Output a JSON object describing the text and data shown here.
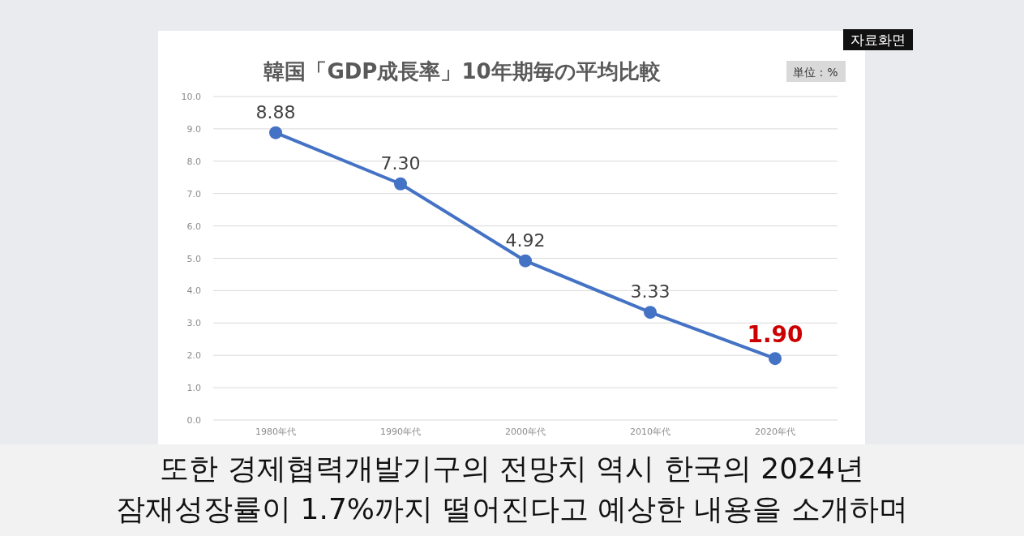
{
  "chart_data": {
    "type": "line",
    "title": "韓国「GDP成長率」10年期毎の平均比較",
    "categories": [
      "1980年代",
      "1990年代",
      "2000年代",
      "2010年代",
      "2020年代"
    ],
    "series": [
      {
        "color": "#4472c4",
        "values": [
          8.88,
          7.3,
          4.92,
          3.33,
          1.9
        ],
        "value_labels": [
          "8.88",
          "7.30",
          "4.92",
          "3.33",
          "1.90"
        ]
      }
    ],
    "ylim": [
      0,
      10
    ],
    "yticks": [
      {
        "value": 0,
        "label": "0.0"
      },
      {
        "value": 1,
        "label": "1.0"
      },
      {
        "value": 2,
        "label": "2.0"
      },
      {
        "value": 3,
        "label": "3.0"
      },
      {
        "value": 4,
        "label": "4.0"
      },
      {
        "value": 5,
        "label": "5.0"
      },
      {
        "value": 6,
        "label": "6.0"
      },
      {
        "value": 7,
        "label": "7.0"
      },
      {
        "value": 8,
        "label": "8.0"
      },
      {
        "value": 9,
        "label": "9.0"
      },
      {
        "value": 10,
        "label": "10.0"
      }
    ],
    "grid": "y",
    "marker": "circle",
    "line_style": "solid",
    "annotations": [
      "単位：%",
      "자료화면",
      "또한 경제협력개발기구의 전망치 역시 한국의 2024년",
      "잠재성장률이 1.7%까지 떨어진다고 예상한 내용을 소개하며"
    ]
  }
}
